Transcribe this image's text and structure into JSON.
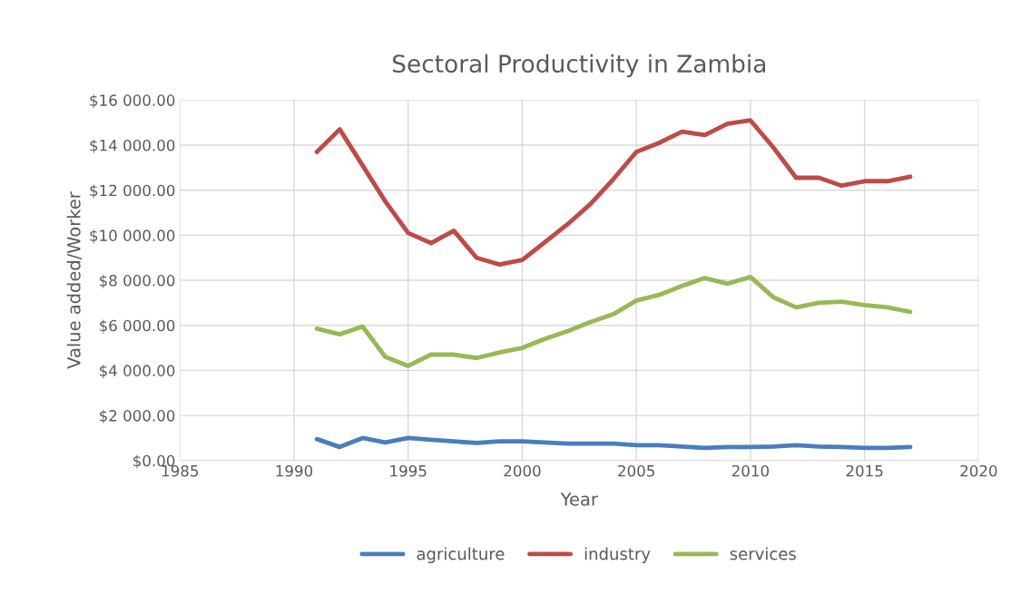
{
  "chart_data": {
    "type": "line",
    "title": "Sectoral Productivity in Zambia",
    "xlabel": "Year",
    "ylabel": "Value added/Worker",
    "x": [
      1991,
      1992,
      1993,
      1994,
      1995,
      1996,
      1997,
      1998,
      1999,
      2000,
      2001,
      2002,
      2003,
      2004,
      2005,
      2006,
      2007,
      2008,
      2009,
      2010,
      2011,
      2012,
      2013,
      2014,
      2015,
      2016,
      2017
    ],
    "series": [
      {
        "name": "agriculture",
        "color": "#4a7ebb",
        "values": [
          950,
          600,
          1000,
          800,
          1000,
          920,
          850,
          780,
          850,
          850,
          800,
          750,
          750,
          750,
          680,
          680,
          620,
          560,
          600,
          600,
          620,
          680,
          620,
          600,
          560,
          560,
          600
        ]
      },
      {
        "name": "industry",
        "color": "#be4b48",
        "values": [
          13700,
          14700,
          13100,
          11500,
          10100,
          9650,
          10200,
          9000,
          8700,
          8900,
          9700,
          10500,
          11400,
          12500,
          13700,
          14100,
          14600,
          14450,
          14950,
          15100,
          13900,
          12550,
          12550,
          12200,
          12400,
          12400,
          12600
        ]
      },
      {
        "name": "services",
        "color": "#98b954",
        "values": [
          5850,
          5600,
          5950,
          4600,
          4200,
          4700,
          4700,
          4550,
          4800,
          5000,
          5400,
          5750,
          6150,
          6500,
          7100,
          7350,
          7750,
          8100,
          7850,
          8150,
          7250,
          6800,
          7000,
          7050,
          6900,
          6800,
          6600
        ]
      }
    ],
    "xlim": [
      1985,
      2020
    ],
    "xticks": [
      1985,
      1990,
      1995,
      2000,
      2005,
      2010,
      2015,
      2020
    ],
    "ylim": [
      0,
      16000
    ],
    "yticks": [
      {
        "value": 0,
        "label": "$0.00"
      },
      {
        "value": 2000,
        "label": "$2 000.00"
      },
      {
        "value": 4000,
        "label": "$4 000.00"
      },
      {
        "value": 6000,
        "label": "$6 000.00"
      },
      {
        "value": 8000,
        "label": "$8 000.00"
      },
      {
        "value": 10000,
        "label": "$10 000.00"
      },
      {
        "value": 12000,
        "label": "$12 000.00"
      },
      {
        "value": 14000,
        "label": "$14 000.00"
      },
      {
        "value": 16000,
        "label": "$16 000.00"
      }
    ],
    "grid": true,
    "legend": "bottom",
    "marker": "none",
    "line_style": "solid"
  }
}
